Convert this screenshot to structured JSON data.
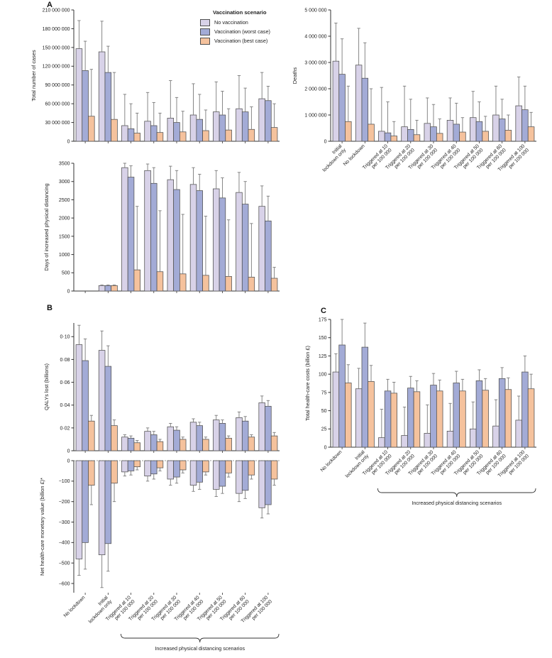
{
  "figure": {
    "panel_a": "A",
    "panel_b": "B",
    "panel_c": "C",
    "brace_label": "Increased physical distancing scenarios"
  },
  "legend": {
    "title": "Vaccination scenario",
    "items": [
      {
        "label": "No vaccination",
        "color": "#d8d2e8"
      },
      {
        "label": "Vaccination (worst case)",
        "color": "#a3abd6"
      },
      {
        "label": "Vaccination (best case)",
        "color": "#f5c29d"
      }
    ]
  },
  "style": {
    "bar_stroke": "#4f4f4f",
    "error_color": "#7a7a7a",
    "axis_color": "#333333",
    "text_color": "#222222",
    "zero_line_color": "#999999"
  },
  "categories": {
    "standard": [
      [
        "No lockdown"
      ],
      [
        "Initial",
        "lockdown only"
      ],
      [
        "Triggered at 10",
        "per 100 000"
      ],
      [
        "Triggered at 20",
        "per 100 000"
      ],
      [
        "Triggered at 30",
        "per 100 000"
      ],
      [
        "Triggered at 40",
        "per 100 000"
      ],
      [
        "Triggered at 50",
        "per 100 000"
      ],
      [
        "Triggered at 60",
        "per 100 000"
      ],
      [
        "Triggered at 100",
        "per 100 000"
      ]
    ],
    "deaths": [
      [
        "Initial",
        "lockdown only"
      ],
      [
        "No lockdown"
      ],
      [
        "Triggered at 10",
        "per 100 000"
      ],
      [
        "Triggered at 20",
        "per 100 000"
      ],
      [
        "Triggered at 30",
        "per 100 000"
      ],
      [
        "Triggered at 40",
        "per 100 000"
      ],
      [
        "Triggered at 50",
        "per 100 000"
      ],
      [
        "Triggered at 60",
        "per 100 000"
      ],
      [
        "Triggered at 100",
        "per 100 000"
      ]
    ]
  },
  "chart_data": [
    {
      "id": "cases",
      "type": "bar",
      "ylabel": "Total number of cases",
      "ylim": [
        0,
        210000000
      ],
      "ytick_values": [
        0,
        30000000,
        60000000,
        90000000,
        120000000,
        150000000,
        180000000,
        210000000
      ],
      "ytick_labels": [
        "0",
        "30 000 000",
        "60 000 000",
        "90 000 000",
        "120 000 000",
        "150 000 000",
        "180 000 000",
        "210 000 000"
      ],
      "categories": "standard",
      "show_x_labels": false,
      "series": [
        {
          "name": "No vaccination",
          "color_ref": 0,
          "values": [
            148000000,
            143000000,
            25000000,
            32000000,
            37000000,
            42000000,
            47000000,
            52000000,
            68000000
          ],
          "whisker": [
            193000000,
            192000000,
            75000000,
            78000000,
            97000000,
            92000000,
            95000000,
            105000000,
            110000000
          ]
        },
        {
          "name": "Vaccination (worst case)",
          "color_ref": 1,
          "values": [
            113000000,
            110000000,
            20000000,
            25000000,
            30000000,
            35000000,
            42000000,
            47000000,
            65000000
          ],
          "whisker": [
            160000000,
            152000000,
            60000000,
            62000000,
            70000000,
            75000000,
            80000000,
            85000000,
            88000000
          ]
        },
        {
          "name": "Vaccination (best case)",
          "color_ref": 2,
          "values": [
            40000000,
            35000000,
            13000000,
            14000000,
            15000000,
            17000000,
            18000000,
            19000000,
            22000000
          ],
          "whisker": [
            115000000,
            110000000,
            45000000,
            45000000,
            48000000,
            50000000,
            52000000,
            55000000,
            60000000
          ]
        }
      ]
    },
    {
      "id": "deaths",
      "type": "bar",
      "ylabel": "Deaths",
      "ylim": [
        0,
        5000000
      ],
      "ytick_values": [
        0,
        1000000,
        2000000,
        3000000,
        4000000,
        5000000
      ],
      "ytick_labels": [
        "0",
        "1 000 000",
        "2 000 000",
        "3 000 000",
        "4 000 000",
        "5 000 000"
      ],
      "categories": "deaths",
      "show_x_labels": true,
      "series": [
        {
          "name": "No vaccination",
          "color_ref": 0,
          "values": [
            3050000,
            2900000,
            380000,
            550000,
            680000,
            800000,
            900000,
            1000000,
            1350000
          ],
          "whisker": [
            4500000,
            4300000,
            2050000,
            2100000,
            1650000,
            1650000,
            1900000,
            2100000,
            2450000
          ]
        },
        {
          "name": "Vaccination (worst case)",
          "color_ref": 1,
          "values": [
            2550000,
            2400000,
            320000,
            450000,
            550000,
            650000,
            750000,
            850000,
            1200000
          ],
          "whisker": [
            3900000,
            3750000,
            1500000,
            1600000,
            1400000,
            1450000,
            1500000,
            1600000,
            2100000
          ]
        },
        {
          "name": "Vaccination (best case)",
          "color_ref": 2,
          "values": [
            750000,
            650000,
            200000,
            250000,
            300000,
            350000,
            380000,
            420000,
            550000
          ],
          "whisker": [
            2100000,
            2000000,
            750000,
            800000,
            850000,
            900000,
            950000,
            1000000,
            1100000
          ]
        }
      ]
    },
    {
      "id": "days",
      "type": "bar",
      "ylabel": "Days of increased physical distancing",
      "ylim": [
        0,
        3500
      ],
      "ytick_values": [
        0,
        500,
        1000,
        1500,
        2000,
        2500,
        3000,
        3500
      ],
      "ytick_labels": [
        "0",
        "500",
        "1000",
        "1500",
        "2000",
        "2500",
        "3000",
        "3500"
      ],
      "categories": "standard",
      "show_x_labels": false,
      "series": [
        {
          "name": "No vaccination",
          "color_ref": 0,
          "values": [
            0,
            150,
            3380,
            3300,
            3050,
            2920,
            2800,
            2700,
            2320
          ],
          "whisker": [
            0,
            165,
            3500,
            3480,
            3420,
            3380,
            3300,
            3250,
            2880
          ]
        },
        {
          "name": "Vaccination (worst case)",
          "color_ref": 1,
          "values": [
            0,
            150,
            3120,
            2950,
            2780,
            2750,
            2550,
            2380,
            1920
          ],
          "whisker": [
            0,
            165,
            3430,
            3380,
            3300,
            3200,
            3100,
            3000,
            2600
          ]
        },
        {
          "name": "Vaccination (best case)",
          "color_ref": 2,
          "values": [
            0,
            150,
            580,
            530,
            470,
            430,
            400,
            380,
            350
          ],
          "whisker": [
            0,
            165,
            2320,
            2200,
            2100,
            2050,
            1950,
            1850,
            650
          ]
        }
      ]
    },
    {
      "id": "qalys",
      "type": "bar",
      "ylabel": "QALYs lost (billions)",
      "ylim": [
        0,
        0.112
      ],
      "ytick_values": [
        0,
        0.02,
        0.04,
        0.06,
        0.08,
        0.1
      ],
      "ytick_labels": [
        "0",
        "0·02",
        "0·04",
        "0·06",
        "0·08",
        "0·10"
      ],
      "categories": "standard",
      "show_x_labels": false,
      "series": [
        {
          "name": "No vaccination",
          "color_ref": 0,
          "values": [
            0.093,
            0.088,
            0.012,
            0.017,
            0.021,
            0.025,
            0.027,
            0.029,
            0.042
          ],
          "whisker": [
            0.11,
            0.105,
            0.014,
            0.02,
            0.024,
            0.028,
            0.031,
            0.034,
            0.048
          ]
        },
        {
          "name": "Vaccination (worst case)",
          "color_ref": 1,
          "values": [
            0.079,
            0.074,
            0.011,
            0.014,
            0.018,
            0.022,
            0.024,
            0.026,
            0.039
          ],
          "whisker": [
            0.098,
            0.092,
            0.013,
            0.017,
            0.021,
            0.025,
            0.027,
            0.03,
            0.044
          ]
        },
        {
          "name": "Vaccination (best case)",
          "color_ref": 2,
          "values": [
            0.026,
            0.022,
            0.007,
            0.008,
            0.01,
            0.01,
            0.011,
            0.012,
            0.013
          ],
          "whisker": [
            0.031,
            0.027,
            0.009,
            0.01,
            0.012,
            0.012,
            0.013,
            0.014,
            0.016
          ]
        }
      ]
    },
    {
      "id": "net",
      "type": "bar",
      "ylabel": "Net health-care monetary value (billion £)*",
      "ylim": [
        -645,
        0
      ],
      "ytick_values": [
        0,
        -100,
        -200,
        -300,
        -400,
        -500,
        -600
      ],
      "ytick_labels": [
        "0",
        "−100",
        "−200",
        "−300",
        "−400",
        "−500",
        "−600"
      ],
      "categories": "standard",
      "show_x_labels": true,
      "zero_dashed_line": true,
      "brace": true,
      "series": [
        {
          "name": "No vaccination",
          "color_ref": 0,
          "values": [
            -480,
            -460,
            -55,
            -75,
            -90,
            -120,
            -140,
            -160,
            -230
          ],
          "whisker": [
            -560,
            -620,
            -75,
            -100,
            -120,
            -150,
            -175,
            -200,
            -280
          ]
        },
        {
          "name": "Vaccination (worst case)",
          "color_ref": 1,
          "values": [
            -400,
            -405,
            -50,
            -65,
            -80,
            -105,
            -125,
            -145,
            -215
          ],
          "whisker": [
            -530,
            -540,
            -70,
            -90,
            -110,
            -140,
            -160,
            -185,
            -260
          ]
        },
        {
          "name": "Vaccination (best case)",
          "color_ref": 2,
          "values": [
            -120,
            -110,
            -30,
            -35,
            -45,
            -55,
            -60,
            -70,
            -90
          ],
          "whisker": [
            -215,
            -200,
            -45,
            -50,
            -60,
            -70,
            -80,
            -90,
            -120
          ]
        }
      ]
    },
    {
      "id": "costs",
      "type": "bar",
      "ylabel": "Total health-care costs (billion £)",
      "ylim": [
        0,
        175
      ],
      "ytick_values": [
        0,
        25,
        50,
        75,
        100,
        125,
        150,
        175
      ],
      "ytick_labels": [
        "0",
        "25",
        "50",
        "75",
        "100",
        "125",
        "150",
        "175"
      ],
      "categories": "standard",
      "show_x_labels": true,
      "brace": true,
      "series": [
        {
          "name": "No vaccination",
          "color_ref": 0,
          "values": [
            103,
            80,
            13,
            16,
            19,
            22,
            25,
            29,
            37
          ],
          "whisker": [
            128,
            108,
            52,
            55,
            58,
            60,
            62,
            65,
            70
          ]
        },
        {
          "name": "Vaccination (worst case)",
          "color_ref": 1,
          "values": [
            140,
            137,
            77,
            81,
            85,
            88,
            91,
            94,
            103
          ],
          "whisker": [
            175,
            170,
            93,
            97,
            101,
            104,
            106,
            109,
            125
          ]
        },
        {
          "name": "Vaccination (best case)",
          "color_ref": 2,
          "values": [
            88,
            90,
            74,
            76,
            77,
            77,
            78,
            79,
            80
          ],
          "whisker": [
            113,
            112,
            89,
            91,
            92,
            93,
            94,
            95,
            100
          ]
        }
      ]
    }
  ]
}
